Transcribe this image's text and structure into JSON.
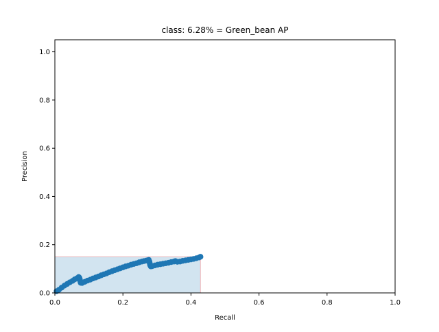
{
  "chart_data": {
    "type": "line",
    "title": "class: 6.28% = Green_bean AP",
    "xlabel": "Recall",
    "ylabel": "Precision",
    "xlim": [
      0.0,
      1.0
    ],
    "ylim": [
      0.0,
      1.05
    ],
    "x_ticks": [
      0.0,
      0.2,
      0.4,
      0.6,
      0.8,
      1.0
    ],
    "x_tick_labels": [
      "0.0",
      "0.2",
      "0.4",
      "0.6",
      "0.8",
      "1.0"
    ],
    "y_ticks": [
      0.0,
      0.2,
      0.4,
      0.6,
      0.8,
      1.0
    ],
    "y_tick_labels": [
      "0.0",
      "0.2",
      "0.4",
      "0.6",
      "0.8",
      "1.0"
    ],
    "grid": false,
    "legend": "none",
    "colors": {
      "series": "#1f77b4",
      "fill": "#1f77b4",
      "fill_edge": "#ff0000"
    },
    "interpolated_area": {
      "x": [
        0.0,
        0.0,
        0.428,
        0.428
      ],
      "y": [
        0.0,
        0.15,
        0.15,
        0.0
      ]
    },
    "series": [
      {
        "x": [
          0.005,
          0.012,
          0.02,
          0.028,
          0.036,
          0.044,
          0.052,
          0.058,
          0.064,
          0.068,
          0.07,
          0.072,
          0.073,
          0.074,
          0.075,
          0.076,
          0.08,
          0.088,
          0.096,
          0.104,
          0.112,
          0.12,
          0.128,
          0.136,
          0.144,
          0.152,
          0.16,
          0.168,
          0.176,
          0.184,
          0.192,
          0.2,
          0.208,
          0.216,
          0.224,
          0.232,
          0.24,
          0.248,
          0.256,
          0.262,
          0.268,
          0.272,
          0.276,
          0.278,
          0.279,
          0.28,
          0.282,
          0.286,
          0.294,
          0.302,
          0.31,
          0.318,
          0.326,
          0.334,
          0.342,
          0.35,
          0.354,
          0.36,
          0.368,
          0.376,
          0.384,
          0.392,
          0.4,
          0.408,
          0.416,
          0.424,
          0.428
        ],
        "y": [
          0.007,
          0.013,
          0.022,
          0.03,
          0.037,
          0.044,
          0.05,
          0.056,
          0.06,
          0.063,
          0.066,
          0.063,
          0.058,
          0.052,
          0.047,
          0.042,
          0.041,
          0.046,
          0.051,
          0.055,
          0.06,
          0.064,
          0.068,
          0.073,
          0.077,
          0.081,
          0.086,
          0.09,
          0.094,
          0.098,
          0.102,
          0.106,
          0.11,
          0.113,
          0.117,
          0.12,
          0.123,
          0.127,
          0.13,
          0.132,
          0.134,
          0.135,
          0.137,
          0.13,
          0.122,
          0.115,
          0.11,
          0.111,
          0.114,
          0.117,
          0.119,
          0.121,
          0.123,
          0.125,
          0.128,
          0.13,
          0.132,
          0.129,
          0.13,
          0.133,
          0.135,
          0.137,
          0.139,
          0.141,
          0.144,
          0.147,
          0.15
        ]
      }
    ]
  }
}
